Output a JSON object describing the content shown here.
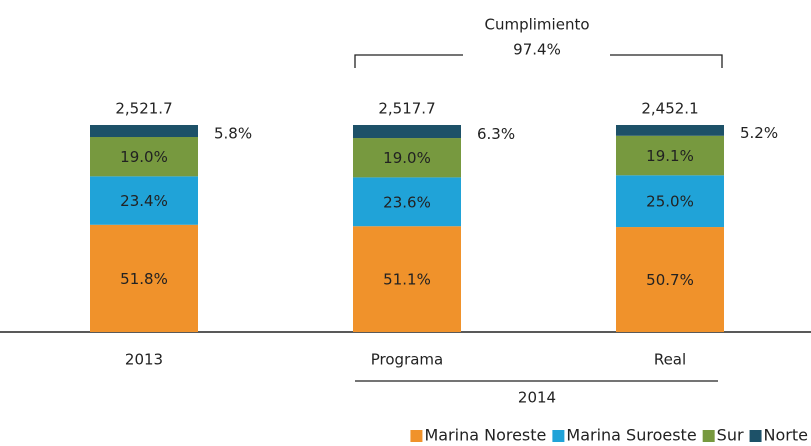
{
  "chart_data": {
    "type": "stacked_bar",
    "categories": [
      "2013",
      "Programa",
      "Real"
    ],
    "group_label": "2014",
    "series": [
      {
        "name": "Marina Noreste",
        "color": "#f0922b",
        "values": [
          51.8,
          51.1,
          50.7
        ],
        "value_labels": [
          "51.8%",
          "51.1%",
          "50.7%"
        ]
      },
      {
        "name": "Marina Suroeste",
        "color": "#20a3d8",
        "values": [
          23.4,
          23.6,
          25.0
        ],
        "value_labels": [
          "23.4%",
          "23.6%",
          "25.0%"
        ]
      },
      {
        "name": "Sur",
        "color": "#77993f",
        "values": [
          19.0,
          19.0,
          19.1
        ],
        "value_labels": [
          "19.0%",
          "19.0%",
          "19.1%"
        ]
      },
      {
        "name": "Norte",
        "color": "#1d5168",
        "values": [
          5.8,
          6.3,
          5.2
        ],
        "value_labels": [
          "5.8%",
          "6.3%",
          "5.2%"
        ]
      }
    ],
    "totals": [
      {
        "value": 2521.7,
        "label": "2,521.7"
      },
      {
        "value": 2517.7,
        "label": "2,517.7"
      },
      {
        "value": 2452.1,
        "label": "2,452.1"
      }
    ],
    "annotations": [
      "Cumplimiento",
      "97.4%"
    ],
    "ylim": [
      0,
      100
    ],
    "legend": "bottom-right"
  }
}
